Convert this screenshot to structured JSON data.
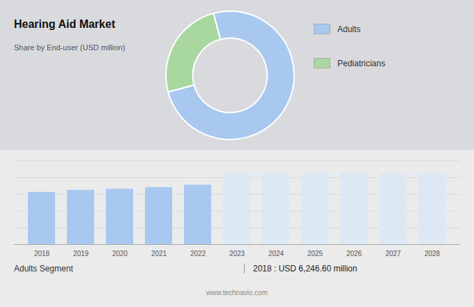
{
  "chart_data": [
    {
      "type": "pie",
      "title": "Hearing Aid Market",
      "subtitle": "Share by End-user (USD million)",
      "categories": [
        "Adults",
        "Pediatricians"
      ],
      "values": [
        75,
        25
      ],
      "colors": [
        "#a8c8f0",
        "#a8d8a0"
      ],
      "legend": "right"
    },
    {
      "type": "bar",
      "categories": [
        "2018",
        "2019",
        "2020",
        "2021",
        "2022",
        "2023",
        "2024",
        "2025",
        "2026",
        "2027",
        "2028"
      ],
      "values": [
        6.25,
        6.5,
        6.62,
        6.82,
        7.1,
        8.5,
        8.5,
        8.5,
        8.5,
        8.5,
        8.5
      ],
      "colors": [
        "#a8c8f0",
        "#a8c8f0",
        "#a8c8f0",
        "#a8c8f0",
        "#a8c8f0",
        "#dde8f5",
        "#dde8f5",
        "#dde8f5",
        "#dde8f5",
        "#dde8f5",
        "#dde8f5"
      ],
      "ylim": [
        0,
        10
      ],
      "yticks": [
        0,
        2,
        4,
        6,
        8,
        10
      ],
      "grid": true,
      "tick_labels": "x",
      "annotations": [
        "Adults Segment",
        "2018 : USD 6,246.60 million",
        "www.technavio.com"
      ]
    }
  ]
}
